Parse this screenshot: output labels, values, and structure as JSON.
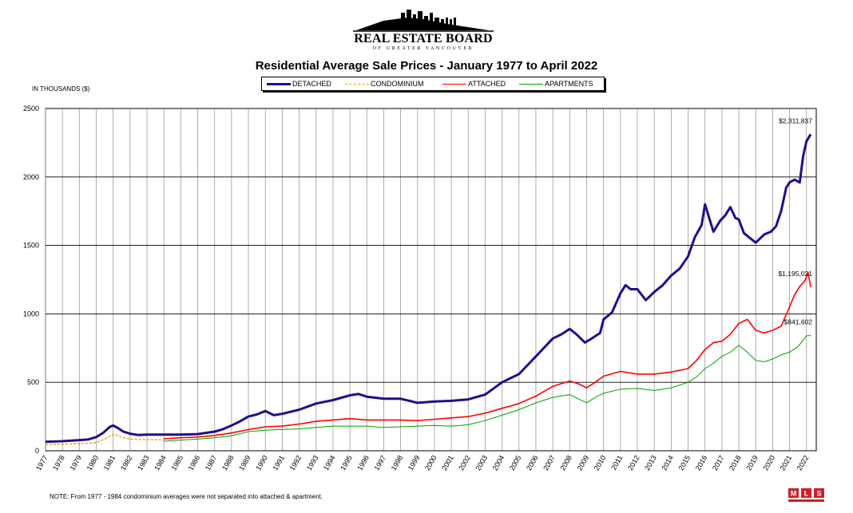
{
  "header": {
    "board_name": "REAL ESTATE BOARD",
    "board_subtitle": "OF GREATER VANCOUVER"
  },
  "footer": {
    "note": "NOTE:  From 1977 - 1984 condominium averages were not separated into attached & apartment."
  },
  "chart_data": {
    "type": "line",
    "title": "Residential Average Sale Prices  -  January 1977 to April 2022",
    "ylabel": "IN THOUSANDS ($)",
    "xlabel": "",
    "ylim": [
      0,
      2500
    ],
    "yticks": [
      0,
      500,
      1000,
      1500,
      2000,
      2500
    ],
    "xlim": [
      1977,
      2022.58
    ],
    "xticks": [
      "1977",
      "1978",
      "1979",
      "1980",
      "1981",
      "1982",
      "1983",
      "1984",
      "1985",
      "1986",
      "1987",
      "1988",
      "1989",
      "1990",
      "1991",
      "1992",
      "1993",
      "1994",
      "1995",
      "1996",
      "1997",
      "1998",
      "1999",
      "2000",
      "2001",
      "2002",
      "2003",
      "2004",
      "2005",
      "2006",
      "2007",
      "2008",
      "2009",
      "2010",
      "2011",
      "2012",
      "2013",
      "2014",
      "2015",
      "2016",
      "2017",
      "2018",
      "2019",
      "2020",
      "2021",
      "2022"
    ],
    "grid": true,
    "legend_position": "top-center",
    "annotations": [
      {
        "text": "$2,311,837",
        "x": 2022.25,
        "y": 2311.837
      },
      {
        "text": "$1,195,021",
        "x": 2022.25,
        "y": 1195.021
      },
      {
        "text": "$841,602",
        "x": 2022.25,
        "y": 841.602
      }
    ],
    "series": [
      {
        "name": "DETACHED",
        "color": "#1f0f8c",
        "style": "solid-thick",
        "x": [
          1977,
          1978,
          1979,
          1979.5,
          1980,
          1980.4,
          1980.8,
          1981.0,
          1981.3,
          1981.6,
          1982,
          1982.5,
          1983,
          1984,
          1985,
          1986,
          1987,
          1987.5,
          1988,
          1988.5,
          1989,
          1989.5,
          1990,
          1990.5,
          1991,
          1992,
          1993,
          1994,
          1995,
          1995.5,
          1996,
          1997,
          1998,
          1999,
          2000,
          2001,
          2002,
          2003,
          2004,
          2005,
          2006,
          2007,
          2007.5,
          2008,
          2008.4,
          2008.9,
          2009.3,
          2009.8,
          2010,
          2010.5,
          2011,
          2011.3,
          2011.6,
          2012,
          2012.5,
          2013,
          2013.5,
          2014,
          2014.5,
          2015,
          2015.4,
          2015.8,
          2016.0,
          2016.2,
          2016.5,
          2016.9,
          2017.2,
          2017.5,
          2017.8,
          2018.0,
          2018.3,
          2018.6,
          2019.0,
          2019.5,
          2019.9,
          2020.2,
          2020.5,
          2020.8,
          2021.0,
          2021.3,
          2021.6,
          2021.8,
          2022.0,
          2022.25
        ],
        "values": [
          65,
          70,
          78,
          82,
          100,
          130,
          175,
          185,
          165,
          140,
          125,
          115,
          118,
          118,
          118,
          122,
          140,
          158,
          185,
          215,
          250,
          265,
          290,
          260,
          270,
          300,
          345,
          370,
          405,
          415,
          395,
          380,
          380,
          350,
          360,
          365,
          375,
          410,
          500,
          560,
          690,
          820,
          850,
          890,
          850,
          790,
          820,
          860,
          960,
          1010,
          1150,
          1210,
          1180,
          1180,
          1100,
          1160,
          1210,
          1280,
          1330,
          1420,
          1560,
          1650,
          1800,
          1720,
          1600,
          1680,
          1720,
          1780,
          1700,
          1690,
          1590,
          1560,
          1520,
          1580,
          1600,
          1640,
          1750,
          1920,
          1960,
          1980,
          1960,
          2150,
          2260,
          2311.837
        ]
      },
      {
        "name": "CONDOMINIUM",
        "color": "#e8a000",
        "style": "dashed",
        "x": [
          1977,
          1978,
          1979,
          1979.5,
          1980,
          1980.5,
          1981.0,
          1981.4,
          1982,
          1983,
          1984
        ],
        "values": [
          45,
          48,
          52,
          55,
          60,
          85,
          120,
          105,
          85,
          82,
          80
        ]
      },
      {
        "name": "ATTACHED",
        "color": "#ff0000",
        "style": "solid",
        "x": [
          1984,
          1985,
          1986,
          1987,
          1988,
          1989,
          1990,
          1991,
          1992,
          1993,
          1994,
          1995,
          1996,
          1997,
          1998,
          1999,
          2000,
          2001,
          2002,
          2003,
          2004,
          2005,
          2006,
          2007,
          2008,
          2008.5,
          2009,
          2009.5,
          2010,
          2011,
          2012,
          2013,
          2014,
          2015,
          2015.5,
          2016,
          2016.5,
          2017,
          2017.5,
          2018,
          2018.5,
          2019,
          2019.5,
          2020,
          2020.5,
          2021,
          2021.3,
          2021.6,
          2021.9,
          2022.1,
          2022.25
        ],
        "values": [
          88,
          95,
          100,
          112,
          130,
          155,
          175,
          180,
          195,
          215,
          225,
          235,
          225,
          225,
          225,
          220,
          230,
          240,
          250,
          275,
          310,
          345,
          400,
          470,
          510,
          490,
          460,
          500,
          545,
          580,
          560,
          560,
          575,
          600,
          660,
          740,
          790,
          800,
          850,
          930,
          960,
          880,
          860,
          880,
          910,
          1050,
          1140,
          1200,
          1240,
          1300,
          1195.021
        ]
      },
      {
        "name": "APARTMENTS",
        "color": "#00a000",
        "style": "solid-thin",
        "x": [
          1984,
          1985,
          1986,
          1987,
          1988,
          1989,
          1990,
          1991,
          1992,
          1993,
          1994,
          1995,
          1996,
          1997,
          1998,
          1999,
          2000,
          2001,
          2002,
          2003,
          2004,
          2005,
          2006,
          2007,
          2008,
          2008.5,
          2009,
          2009.5,
          2010,
          2011,
          2012,
          2013,
          2014,
          2015,
          2015.5,
          2016,
          2016.5,
          2017,
          2017.5,
          2018,
          2018.5,
          2019,
          2019.5,
          2020,
          2020.5,
          2021,
          2021.5,
          2022.0,
          2022.25
        ],
        "values": [
          70,
          78,
          85,
          95,
          110,
          140,
          150,
          155,
          160,
          170,
          180,
          180,
          180,
          170,
          175,
          180,
          185,
          180,
          190,
          220,
          260,
          300,
          350,
          390,
          410,
          380,
          350,
          390,
          420,
          450,
          455,
          440,
          460,
          500,
          540,
          600,
          640,
          690,
          720,
          770,
          720,
          660,
          650,
          670,
          700,
          720,
          760,
          840,
          841.602
        ]
      }
    ]
  }
}
